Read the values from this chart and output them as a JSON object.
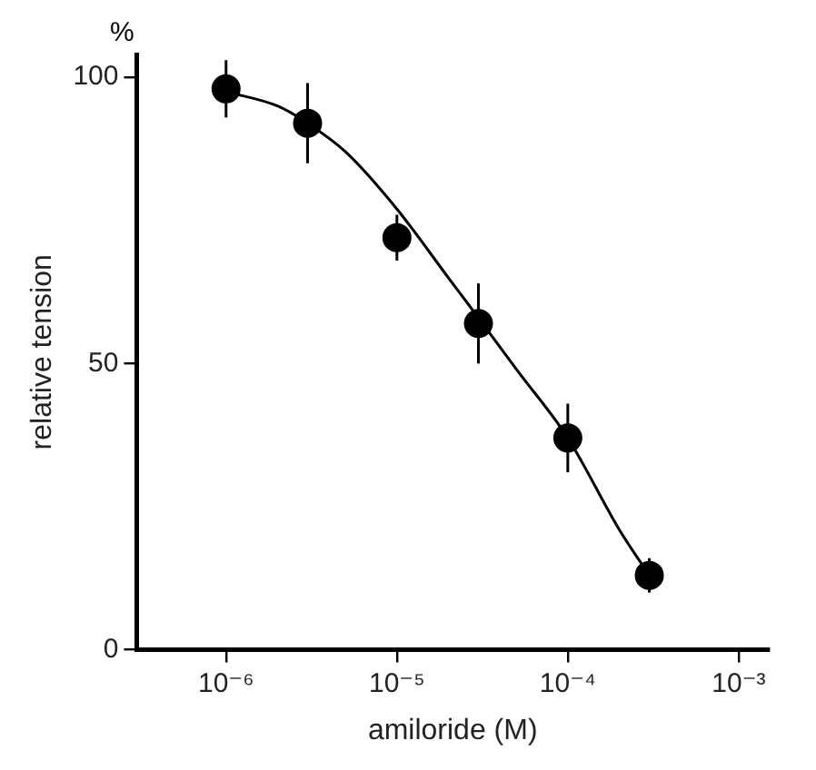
{
  "chart_data": {
    "type": "scatter",
    "xlabel": "amiloride (M)",
    "ylabel": "relative tension",
    "annotations": [
      "%"
    ],
    "log": "x",
    "xlim": [
      3e-07,
      0.0015
    ],
    "xticks": [
      {
        "value": 1e-06,
        "label": "10⁻⁶"
      },
      {
        "value": 1e-05,
        "label": "10⁻⁵"
      },
      {
        "value": 0.0001,
        "label": "10⁻⁴"
      },
      {
        "value": 0.001,
        "label": "10⁻³"
      }
    ],
    "ylim": [
      0,
      104
    ],
    "yticks": [
      0,
      50,
      100
    ],
    "grid": false,
    "legend": false,
    "series": [
      {
        "color": "#000000",
        "marker": "circle",
        "x": [
          1e-06,
          3e-06,
          1e-05,
          3e-05,
          0.0001,
          0.0003
        ],
        "values": [
          98,
          92,
          72,
          57,
          37,
          13
        ],
        "errors": [
          5,
          7,
          4,
          7,
          6,
          3
        ]
      },
      {
        "type": "line",
        "color": "#000000",
        "marker": "none",
        "line_style": "solid",
        "x": [
          1e-06,
          2e-06,
          3e-06,
          5e-06,
          1e-05,
          2e-05,
          3e-05,
          5e-05,
          0.0001,
          0.0002,
          0.0003
        ],
        "values": [
          97.5,
          95,
          92,
          87,
          77,
          65,
          58,
          49,
          37,
          21,
          13
        ]
      }
    ]
  }
}
